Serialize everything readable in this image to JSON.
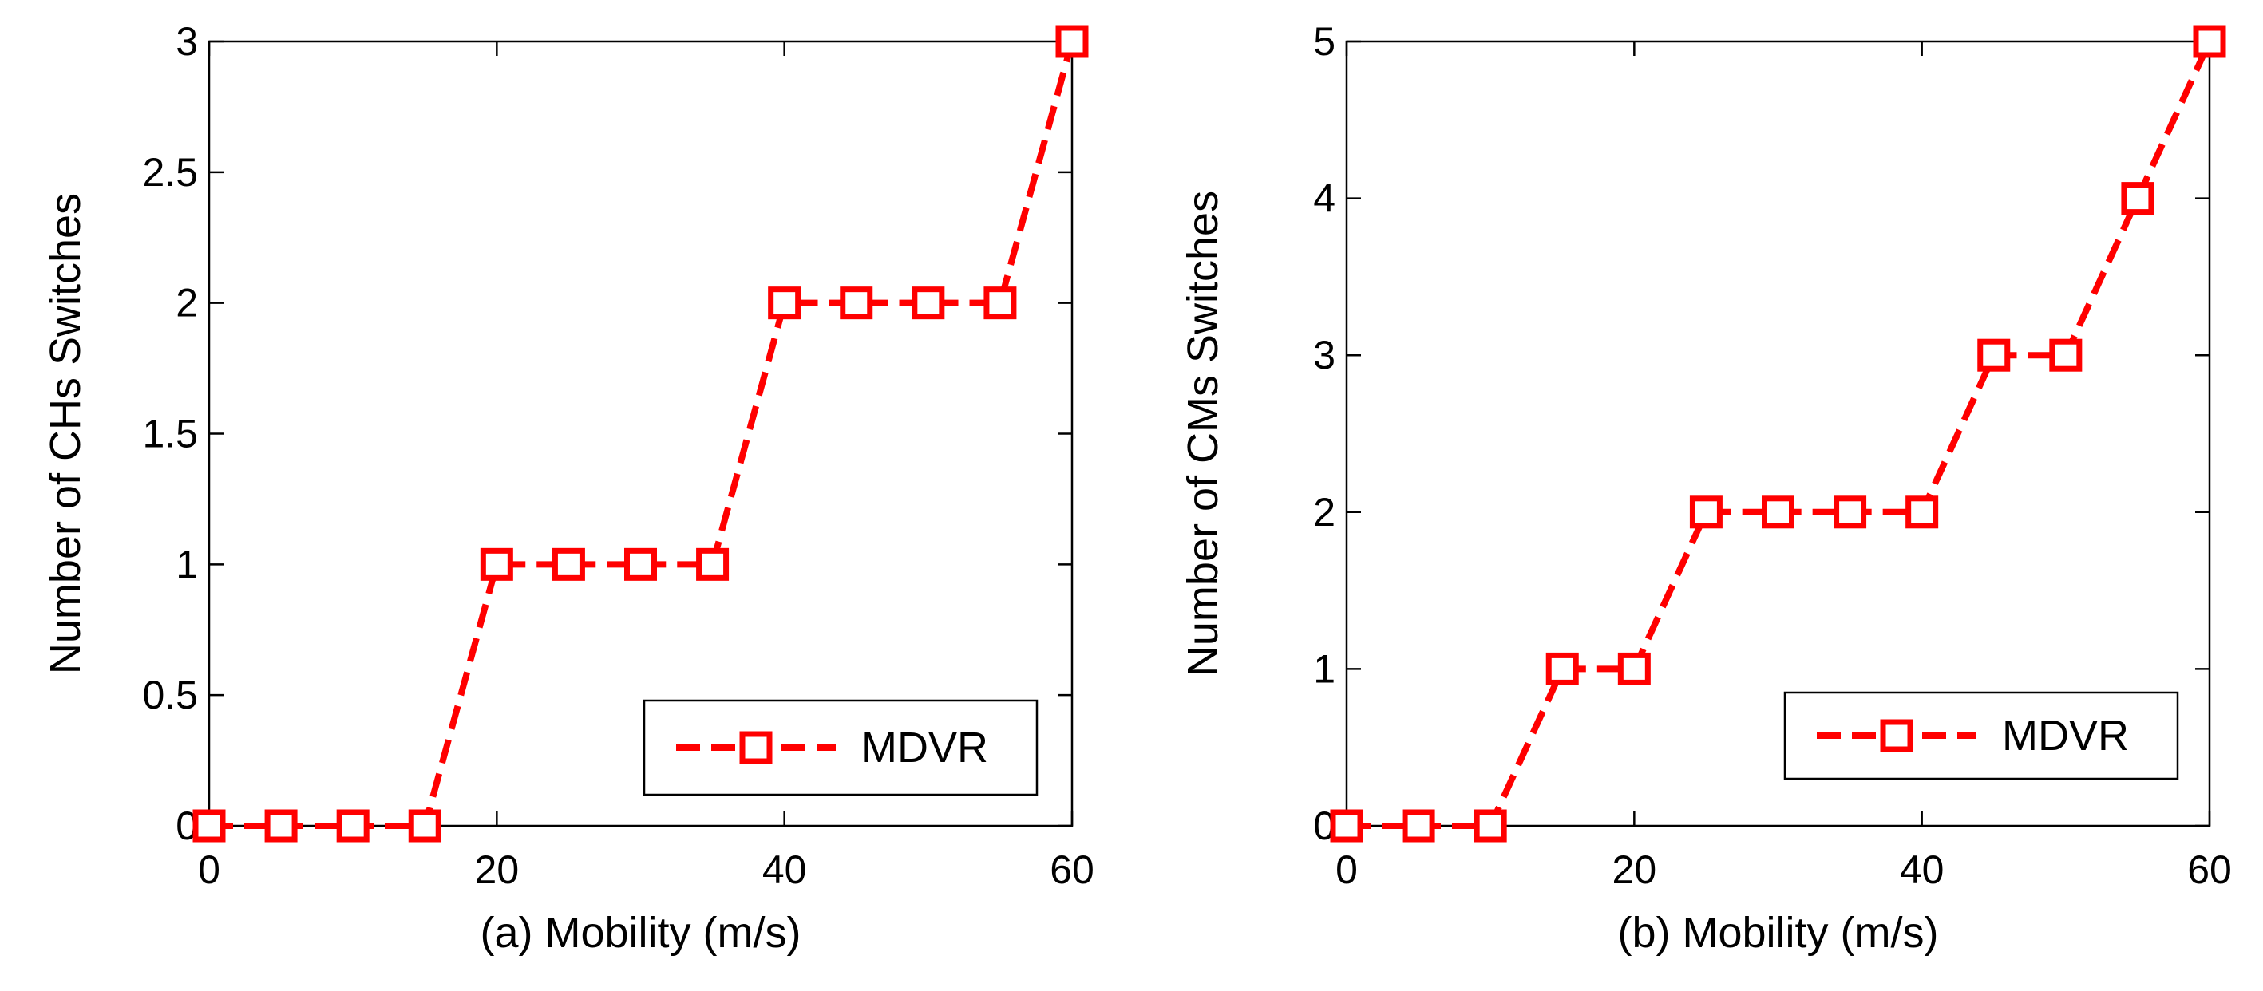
{
  "chart_data": [
    {
      "type": "line",
      "xlabel": "(a) Mobility (m/s)",
      "ylabel": "Number of CHs Switches",
      "xlim": [
        0,
        60
      ],
      "ylim": [
        0,
        3
      ],
      "xticks": [
        0,
        20,
        40,
        60
      ],
      "yticks": [
        0,
        0.5,
        1,
        1.5,
        2,
        2.5,
        3
      ],
      "xtick_labels": [
        "0",
        "20",
        "40",
        "60"
      ],
      "ytick_labels": [
        "0",
        "0.5",
        "1",
        "1.5",
        "2",
        "2.5",
        "3"
      ],
      "grid": false,
      "legend_position": "lower-right",
      "series": [
        {
          "name": "MDVR",
          "color": "#ff0000",
          "line_style": "dashed",
          "marker": "square",
          "x": [
            0,
            5,
            10,
            15,
            20,
            25,
            30,
            35,
            40,
            45,
            50,
            55,
            60
          ],
          "y": [
            0,
            0,
            0,
            0,
            1,
            1,
            1,
            1,
            2,
            2,
            2,
            2,
            3
          ]
        }
      ]
    },
    {
      "type": "line",
      "xlabel": "(b) Mobility (m/s)",
      "ylabel": "Number of CMs Switches",
      "xlim": [
        0,
        60
      ],
      "ylim": [
        0,
        5
      ],
      "xticks": [
        0,
        20,
        40,
        60
      ],
      "yticks": [
        0,
        1,
        2,
        3,
        4,
        5
      ],
      "xtick_labels": [
        "0",
        "20",
        "40",
        "60"
      ],
      "ytick_labels": [
        "0",
        "1",
        "2",
        "3",
        "4",
        "5"
      ],
      "grid": false,
      "legend_position": "lower-right",
      "series": [
        {
          "name": "MDVR",
          "color": "#ff0000",
          "line_style": "dashed",
          "marker": "square",
          "x": [
            0,
            5,
            10,
            15,
            20,
            25,
            30,
            35,
            40,
            45,
            50,
            55,
            60
          ],
          "y": [
            0,
            0,
            0,
            1,
            1,
            2,
            2,
            2,
            2,
            3,
            3,
            4,
            5
          ]
        }
      ]
    }
  ]
}
